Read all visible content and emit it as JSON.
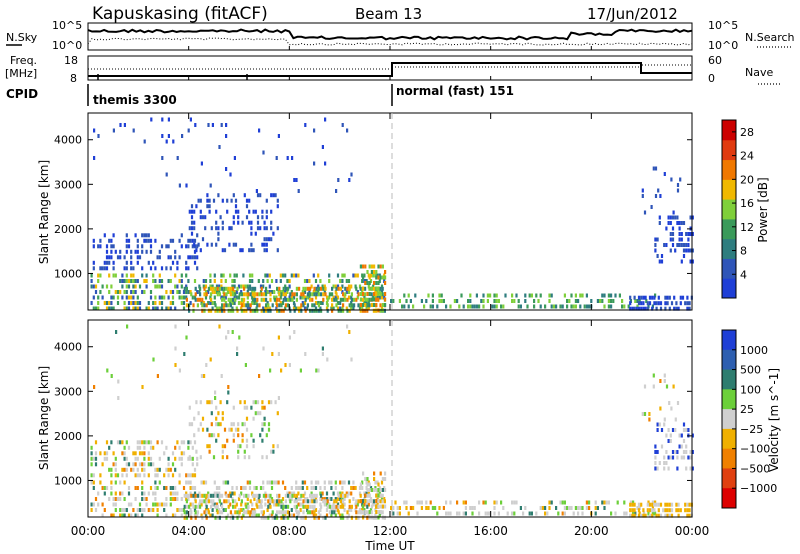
{
  "header": {
    "station": "Kapuskasing (fitACF)",
    "beam": "Beam 13",
    "date": "17/Jun/2012"
  },
  "param_panel": {
    "nsky_label": "N.Sky",
    "nsky_ticks": [
      "10^5",
      "10^0"
    ],
    "nsearch_label": "N.Search",
    "nsearch_ticks": [
      "10^5",
      "10^0"
    ],
    "freq_label_1": "Freq.",
    "freq_label_2": "[MHz]",
    "freq_ticks": [
      "18",
      "8"
    ],
    "nave_label": "Nave",
    "nave_ticks": [
      "60",
      "0"
    ],
    "cpid_label": "CPID",
    "cpid_modes": [
      "themis 3300",
      "normal (fast) 151"
    ]
  },
  "colors": {
    "power_scale": [
      "#1f3fd6",
      "#2f55b8",
      "#2e7d7f",
      "#3a9a5a",
      "#7fcf3a",
      "#f0b800",
      "#f07800",
      "#e03a10",
      "#cc0000"
    ],
    "velocity_scale": [
      "#1f3fd6",
      "#2e5fb0",
      "#2e7d6f",
      "#6ccf3a",
      "#cfcfcf",
      "#f0b000",
      "#f08000",
      "#e04010",
      "#dd0000"
    ]
  },
  "chart_data": [
    {
      "type": "heatmap",
      "title": "",
      "ylabel": "Slant Range [km]",
      "xlabel": "Time UT",
      "x_ticks": [
        "00:00",
        "04:00",
        "08:00",
        "12:00",
        "16:00",
        "20:00",
        "00:00"
      ],
      "y_ticks": [
        "1000",
        "2000",
        "3000",
        "4000"
      ],
      "xlim_hours": [
        0,
        24
      ],
      "ylim_km": [
        180,
        4600
      ],
      "colorbar_label": "Power [dB]",
      "colorbar_ticks": [
        "4",
        "8",
        "12",
        "16",
        "20",
        "24",
        "28"
      ],
      "colorbar_range": [
        0,
        30
      ],
      "mode_change_hour": 12
    },
    {
      "type": "heatmap",
      "title": "",
      "ylabel": "Slant Range [km]",
      "xlabel": "Time UT",
      "x_ticks": [
        "00:00",
        "04:00",
        "08:00",
        "12:00",
        "16:00",
        "20:00",
        "00:00"
      ],
      "y_ticks": [
        "1000",
        "2000",
        "3000",
        "4000"
      ],
      "xlim_hours": [
        0,
        24
      ],
      "ylim_km": [
        180,
        4600
      ],
      "colorbar_label": "Velocity [m s^-1]",
      "colorbar_ticks": [
        "1000",
        "500",
        "100",
        "25",
        "−25",
        "−100",
        "−500",
        "−1000"
      ],
      "mode_change_hour": 12
    }
  ],
  "xaxis_label": "Time UT"
}
